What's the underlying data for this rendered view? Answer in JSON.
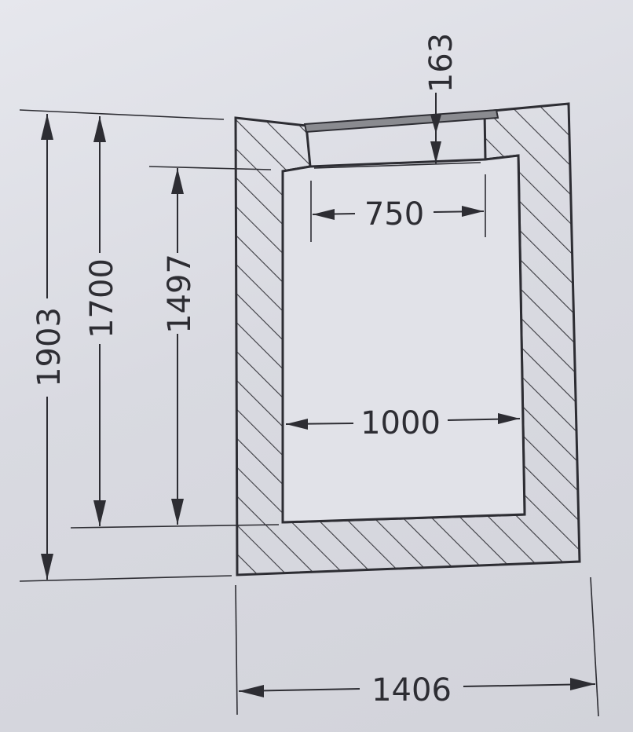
{
  "drawing": {
    "dimensions": {
      "overall_height": "1903",
      "outer_height": "1700",
      "inner_height": "1497",
      "cover_depth": "163",
      "opening_width": "750",
      "inner_width": "1000",
      "overall_width": "1406"
    },
    "colors": {
      "paper": "#e3e4ea",
      "line": "#2d2d33",
      "hatch": "#3a3a40",
      "cover": "#8a8b90"
    }
  }
}
